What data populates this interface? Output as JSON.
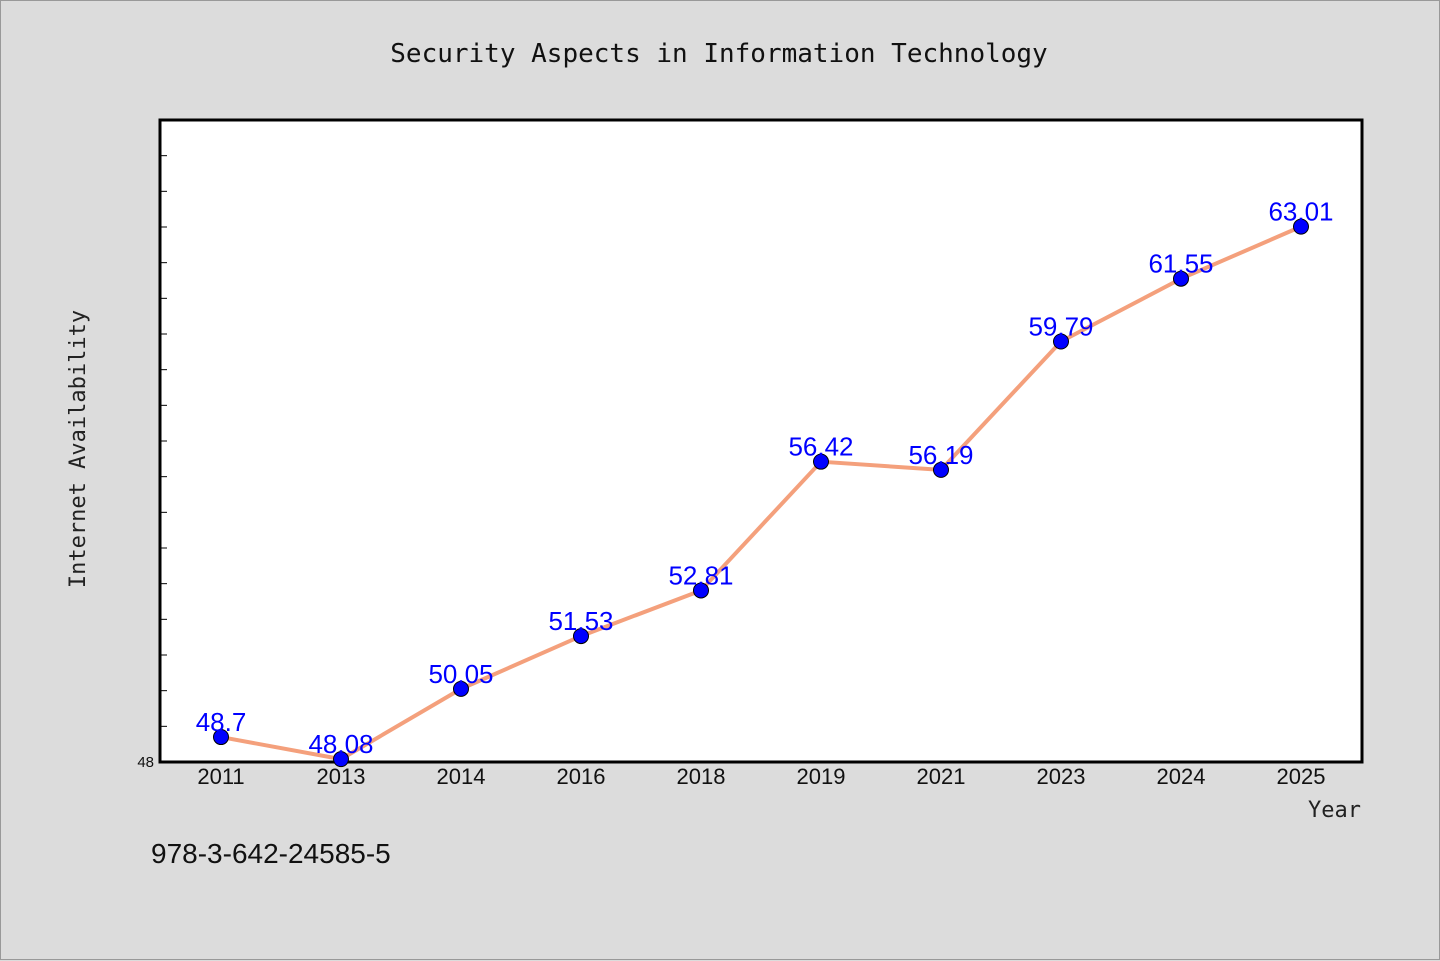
{
  "chart_data": {
    "type": "line",
    "title": "Security Aspects in Information Technology",
    "xlabel": "Year",
    "ylabel": "Internet Availability",
    "categories": [
      "2011",
      "2013",
      "2014",
      "2016",
      "2018",
      "2019",
      "2021",
      "2023",
      "2024",
      "2025"
    ],
    "series": [
      {
        "values": [
          48.7,
          48.08,
          50.05,
          51.53,
          52.81,
          56.42,
          56.19,
          59.79,
          61.55,
          63.01
        ],
        "labels": [
          "48.7",
          "48.08",
          "50.05",
          "51.53",
          "52.81",
          "56.42",
          "56.19",
          "59.79",
          "61.55",
          "63.01"
        ]
      }
    ],
    "ylim": [
      48,
      66
    ],
    "y_min_label": "48",
    "grid": false,
    "legend": "none",
    "colors": {
      "line": "#f4a07c",
      "marker": "#0000ff",
      "data_label": "#0000ff",
      "background": "#dcdcdc",
      "plot_background": "#ffffff"
    }
  },
  "footnote": "978-3-642-24585-5"
}
